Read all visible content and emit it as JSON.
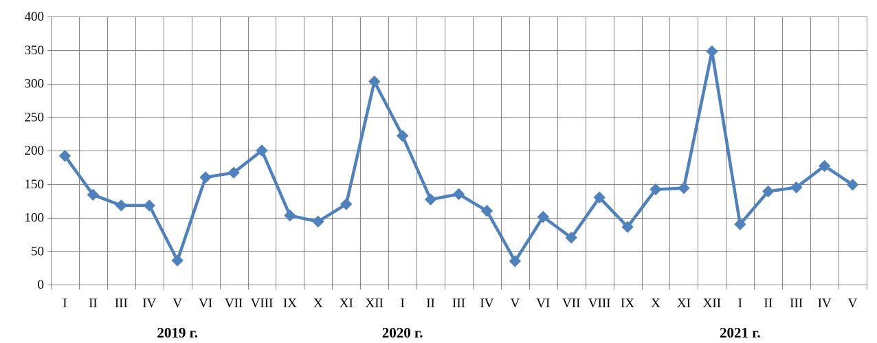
{
  "chart_data": {
    "type": "line",
    "title": "",
    "xlabel": "",
    "ylabel": "",
    "ylim": [
      0,
      400
    ],
    "yticks": [
      "0",
      "50",
      "100",
      "150",
      "200",
      "250",
      "300",
      "350",
      "400"
    ],
    "grid": true,
    "legend": "none",
    "categories": [
      "I",
      "II",
      "III",
      "IV",
      "V",
      "VI",
      "VII",
      "VIII",
      "IX",
      "X",
      "XI",
      "XII",
      "I",
      "II",
      "III",
      "IV",
      "V",
      "VI",
      "VII",
      "VIII",
      "IX",
      "X",
      "XI",
      "XII",
      "I",
      "II",
      "III",
      "IV",
      "V"
    ],
    "year_labels": [
      {
        "text": "2019 г.",
        "month_index": 4
      },
      {
        "text": "2020 г.",
        "month_index": 12
      },
      {
        "text": "2021 г.",
        "month_index": 24
      }
    ],
    "series": [
      {
        "values": [
          192,
          134,
          118,
          118,
          36,
          160,
          167,
          200,
          103,
          94,
          120,
          303,
          222,
          127,
          135,
          110,
          35,
          101,
          70,
          130,
          86,
          142,
          144,
          348,
          90,
          139,
          145,
          177,
          149
        ]
      }
    ],
    "colors": {
      "line": "#4F81BD",
      "marker": "#4F81BD",
      "grid": "#868686",
      "axis": "#868686"
    }
  }
}
